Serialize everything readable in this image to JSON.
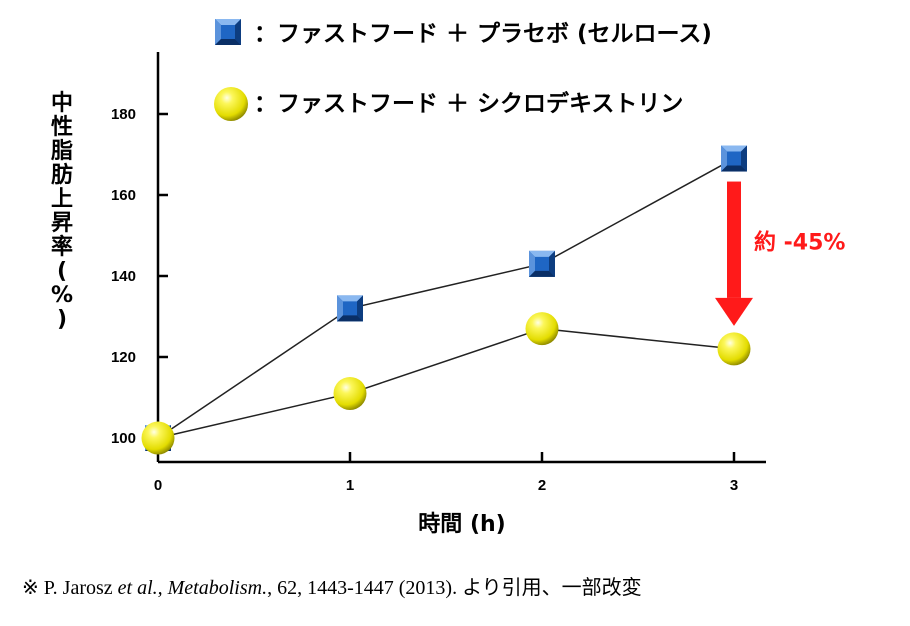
{
  "chart_data": {
    "type": "line",
    "x": [
      0,
      1,
      2,
      3
    ],
    "x_ticks": [
      "0",
      "1",
      "2",
      "3"
    ],
    "xlabel": "時間 (h)",
    "ylabel": "中性脂肪上昇率(%)",
    "ylim": [
      98,
      195
    ],
    "y_ticks": [
      "100",
      "120",
      "140",
      "160",
      "180"
    ],
    "grid": false,
    "legend_position": "top",
    "series": [
      {
        "name": "：ファストフード ＋ プラセボ (セルロース)",
        "marker": "square",
        "color": "#1f66c4",
        "values": [
          100,
          132,
          143,
          169
        ]
      },
      {
        "name": "：ファストフード ＋ シクロデキストリン",
        "marker": "circle",
        "color": "#f2ee00",
        "values": [
          100,
          111,
          127,
          122
        ]
      }
    ],
    "annotation": {
      "text": "約 -45%",
      "x": 3,
      "from": 169,
      "to": 122,
      "color": "#ff1a1a"
    }
  },
  "citation": {
    "mark": "※ P. Jarosz ",
    "etal": "et al., Metabolism.",
    "rest": ", 62, 1443-1447 (2013). より引用、一部改変"
  }
}
